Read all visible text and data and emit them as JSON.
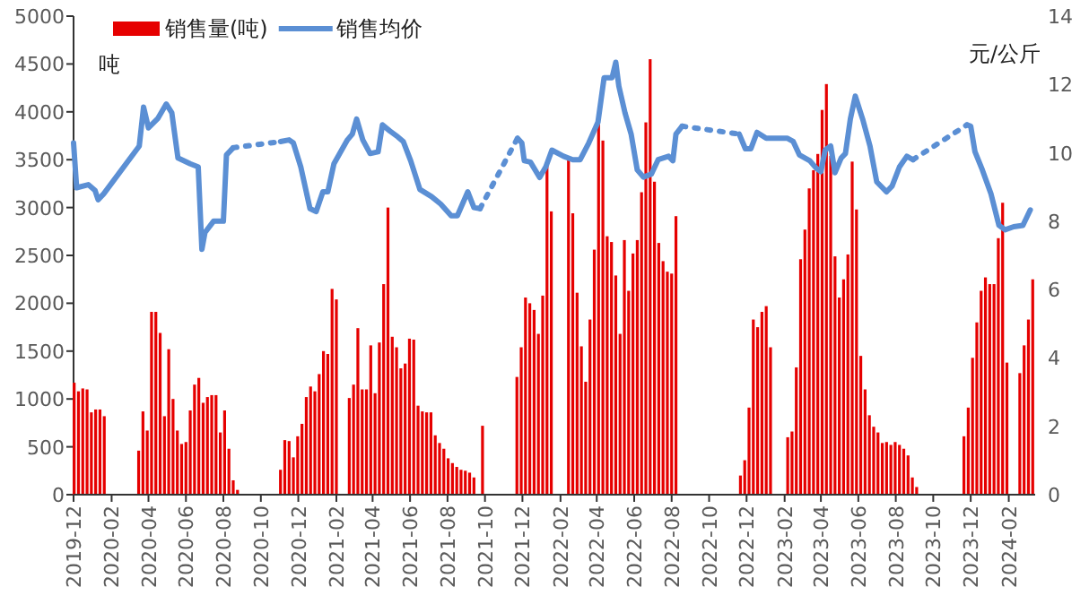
{
  "chart_data": {
    "type": "bar",
    "ylabel": "吨",
    "y2label": "元/公斤",
    "legend": "top left",
    "xlim": [
      "2019-12-01",
      "2024-03-15"
    ],
    "ylim": [
      0,
      5000
    ],
    "yticks": [
      0,
      500,
      1000,
      1500,
      2000,
      2500,
      3000,
      3500,
      4000,
      4500,
      5000
    ],
    "y2lim": [
      0,
      14
    ],
    "y2ticks": [
      0,
      2,
      4,
      6,
      8,
      10,
      12,
      14
    ],
    "xticks": [
      {
        "value": "2019-12",
        "label": "2019-12"
      },
      {
        "value": "2020-02",
        "label": "2020-02"
      },
      {
        "value": "2020-04",
        "label": "2020-04"
      },
      {
        "value": "2020-06",
        "label": "2020-06"
      },
      {
        "value": "2020-08",
        "label": "2020-08"
      },
      {
        "value": "2020-10",
        "label": "2020-10"
      },
      {
        "value": "2020-12",
        "label": "2020-12"
      },
      {
        "value": "2021-02",
        "label": "2021-02"
      },
      {
        "value": "2021-04",
        "label": "2021-04"
      },
      {
        "value": "2021-06",
        "label": "2021-06"
      },
      {
        "value": "2021-08",
        "label": "2021-08"
      },
      {
        "value": "2021-10",
        "label": "2021-10"
      },
      {
        "value": "2021-12",
        "label": "2021-12"
      },
      {
        "value": "2022-02",
        "label": "2022-02"
      },
      {
        "value": "2022-04",
        "label": "2022-04"
      },
      {
        "value": "2022-06",
        "label": "2022-06"
      },
      {
        "value": "2022-08",
        "label": "2022-08"
      },
      {
        "value": "2022-10",
        "label": "2022-10"
      },
      {
        "value": "2022-12",
        "label": "2022-12"
      },
      {
        "value": "2023-02",
        "label": "2023-02"
      },
      {
        "value": "2023-04",
        "label": "2023-04"
      },
      {
        "value": "2023-06",
        "label": "2023-06"
      },
      {
        "value": "2023-08",
        "label": "2023-08"
      },
      {
        "value": "2023-10",
        "label": "2023-10"
      },
      {
        "value": "2023-12",
        "label": "2023-12"
      },
      {
        "value": "2024-02",
        "label": "2024-02"
      }
    ],
    "series": [
      {
        "name": "销售量(吨)",
        "color": "#e60000",
        "x": [
          "2019-12-02",
          "2019-12-09",
          "2019-12-16",
          "2019-12-23",
          "2019-12-30",
          "2020-01-06",
          "2020-01-13",
          "2020-01-20",
          "2020-03-16",
          "2020-03-23",
          "2020-03-30",
          "2020-04-06",
          "2020-04-13",
          "2020-04-20",
          "2020-04-27",
          "2020-05-04",
          "2020-05-11",
          "2020-05-18",
          "2020-05-25",
          "2020-06-01",
          "2020-06-08",
          "2020-06-15",
          "2020-06-22",
          "2020-06-29",
          "2020-07-06",
          "2020-07-13",
          "2020-07-20",
          "2020-07-27",
          "2020-08-03",
          "2020-08-10",
          "2020-08-17",
          "2020-08-24",
          "2020-08-31",
          "2020-11-02",
          "2020-11-09",
          "2020-11-16",
          "2020-11-23",
          "2020-11-30",
          "2020-12-07",
          "2020-12-14",
          "2020-12-21",
          "2020-12-28",
          "2021-01-04",
          "2021-01-11",
          "2021-01-18",
          "2021-01-25",
          "2021-02-01",
          "2021-02-22",
          "2021-03-01",
          "2021-03-08",
          "2021-03-15",
          "2021-03-22",
          "2021-03-29",
          "2021-04-05",
          "2021-04-12",
          "2021-04-19",
          "2021-04-26",
          "2021-05-03",
          "2021-05-10",
          "2021-05-17",
          "2021-05-24",
          "2021-05-31",
          "2021-06-07",
          "2021-06-14",
          "2021-06-21",
          "2021-06-28",
          "2021-07-05",
          "2021-07-12",
          "2021-07-19",
          "2021-07-26",
          "2021-08-02",
          "2021-08-09",
          "2021-08-16",
          "2021-08-23",
          "2021-08-30",
          "2021-09-06",
          "2021-09-13",
          "2021-09-27",
          "2021-11-22",
          "2021-11-29",
          "2021-12-06",
          "2021-12-13",
          "2021-12-20",
          "2021-12-27",
          "2022-01-03",
          "2022-01-10",
          "2022-01-17",
          "2022-02-14",
          "2022-02-21",
          "2022-02-28",
          "2022-03-07",
          "2022-03-14",
          "2022-03-21",
          "2022-03-28",
          "2022-04-04",
          "2022-04-11",
          "2022-04-18",
          "2022-04-25",
          "2022-05-02",
          "2022-05-09",
          "2022-05-16",
          "2022-05-23",
          "2022-05-30",
          "2022-06-06",
          "2022-06-13",
          "2022-06-20",
          "2022-06-27",
          "2022-07-04",
          "2022-07-11",
          "2022-07-18",
          "2022-07-25",
          "2022-08-01",
          "2022-08-08",
          "2022-11-21",
          "2022-11-28",
          "2022-12-05",
          "2022-12-12",
          "2022-12-19",
          "2022-12-26",
          "2023-01-02",
          "2023-01-09",
          "2023-02-06",
          "2023-02-13",
          "2023-02-20",
          "2023-02-27",
          "2023-03-06",
          "2023-03-13",
          "2023-03-20",
          "2023-03-27",
          "2023-04-03",
          "2023-04-10",
          "2023-04-17",
          "2023-04-24",
          "2023-05-01",
          "2023-05-08",
          "2023-05-15",
          "2023-05-22",
          "2023-05-29",
          "2023-06-05",
          "2023-06-12",
          "2023-06-19",
          "2023-06-26",
          "2023-07-03",
          "2023-07-10",
          "2023-07-17",
          "2023-07-24",
          "2023-07-31",
          "2023-08-07",
          "2023-08-14",
          "2023-08-21",
          "2023-08-28",
          "2023-09-04",
          "2023-11-20",
          "2023-11-27",
          "2023-12-04",
          "2023-12-11",
          "2023-12-18",
          "2023-12-25",
          "2024-01-01",
          "2024-01-08",
          "2024-01-15",
          "2024-01-22",
          "2024-01-29",
          "2024-02-19",
          "2024-02-26",
          "2024-03-04",
          "2024-03-11"
        ],
        "values": [
          1170,
          1080,
          1110,
          1100,
          860,
          890,
          890,
          820,
          460,
          870,
          670,
          1910,
          1910,
          1690,
          820,
          1520,
          1000,
          670,
          530,
          550,
          880,
          1150,
          1220,
          960,
          1020,
          1040,
          1040,
          650,
          880,
          480,
          150,
          50,
          null,
          260,
          570,
          560,
          390,
          610,
          740,
          1020,
          1130,
          1080,
          1260,
          1500,
          1470,
          2150,
          2040,
          1010,
          1150,
          1740,
          1100,
          1100,
          1560,
          1060,
          1590,
          2200,
          3000,
          1650,
          1540,
          1320,
          1370,
          1630,
          1620,
          930,
          870,
          860,
          860,
          620,
          540,
          480,
          380,
          330,
          290,
          260,
          250,
          230,
          180,
          720,
          1230,
          1540,
          2060,
          2000,
          1930,
          1680,
          2080,
          3450,
          2960,
          3520,
          2940,
          2110,
          1550,
          1180,
          1830,
          2560,
          3890,
          3700,
          2700,
          2640,
          2290,
          1680,
          2660,
          2130,
          2520,
          2660,
          3160,
          3890,
          4550,
          3270,
          2630,
          2440,
          2330,
          2310,
          2910,
          200,
          360,
          910,
          1830,
          1750,
          1910,
          1970,
          1540,
          600,
          660,
          1330,
          2460,
          2770,
          3200,
          3390,
          3560,
          4020,
          4290,
          3540,
          2490,
          2060,
          2250,
          2510,
          3480,
          2980,
          1450,
          1100,
          830,
          710,
          650,
          540,
          550,
          520,
          550,
          520,
          480,
          410,
          180,
          80,
          610,
          910,
          1430,
          1800,
          2130,
          2270,
          2200,
          2200,
          2680,
          3050,
          1380,
          1270,
          1560,
          1830,
          2250
        ]
      },
      {
        "name": "销售均价",
        "type": "line",
        "axis": "y2",
        "color": "#5b8fd4",
        "line_style": "solid",
        "x": [
          "2019-12-01",
          "2019-12-06",
          "2019-12-25",
          "2020-01-05",
          "2020-01-10",
          "2020-01-19",
          "2020-03-17",
          "2020-03-24",
          "2020-04-01",
          "2020-04-16",
          "2020-04-30",
          "2020-05-09",
          "2020-05-19",
          "2020-06-08",
          "2020-06-21",
          "2020-06-27",
          "2020-07-02",
          "2020-07-16",
          "2020-08-01",
          "2020-08-06",
          "2020-08-17",
          "2020-10-01",
          "2020-11-02",
          "2020-11-16",
          "2020-11-23",
          "2020-12-05",
          "2020-12-20",
          "2020-12-30",
          "2021-01-10",
          "2021-01-18",
          "2021-01-28",
          "2021-02-19",
          "2021-02-27",
          "2021-03-06",
          "2021-03-16",
          "2021-03-28",
          "2021-04-10",
          "2021-04-17",
          "2021-04-29",
          "2021-05-12",
          "2021-05-21",
          "2021-06-02",
          "2021-06-17",
          "2021-07-06",
          "2021-07-21",
          "2021-08-07",
          "2021-08-17",
          "2021-09-03",
          "2021-09-13",
          "2021-09-23",
          "2021-10-20",
          "2021-11-23",
          "2021-11-30",
          "2021-12-04",
          "2021-12-14",
          "2021-12-29",
          "2022-01-08",
          "2022-01-18",
          "2022-02-06",
          "2022-02-21",
          "2022-03-05",
          "2022-03-19",
          "2022-04-03",
          "2022-04-13",
          "2022-04-26",
          "2022-05-02",
          "2022-05-07",
          "2022-05-17",
          "2022-05-27",
          "2022-06-06",
          "2022-06-16",
          "2022-06-29",
          "2022-07-10",
          "2022-07-27",
          "2022-08-03",
          "2022-08-08",
          "2022-08-18",
          "2022-10-01",
          "2022-11-19",
          "2022-11-29",
          "2022-12-08",
          "2022-12-18",
          "2023-01-02",
          "2023-01-16",
          "2023-02-05",
          "2023-02-15",
          "2023-02-25",
          "2023-03-14",
          "2023-03-24",
          "2023-04-01",
          "2023-04-08",
          "2023-04-17",
          "2023-04-24",
          "2023-05-04",
          "2023-05-11",
          "2023-05-19",
          "2023-05-27",
          "2023-06-08",
          "2023-06-20",
          "2023-07-01",
          "2023-07-17",
          "2023-07-26",
          "2023-08-07",
          "2023-08-19",
          "2023-08-29",
          "2023-10-15",
          "2023-11-25",
          "2023-12-01",
          "2023-12-08",
          "2023-12-20",
          "2024-01-03",
          "2024-01-16",
          "2024-01-26",
          "2024-02-09",
          "2024-02-24",
          "2024-03-07"
        ],
        "values": [
          10.29,
          8.98,
          9.07,
          8.9,
          8.63,
          8.8,
          10.2,
          11.34,
          10.73,
          11.0,
          11.43,
          11.17,
          9.85,
          9.68,
          9.59,
          7.18,
          7.67,
          8.0,
          8.0,
          9.94,
          10.15,
          null,
          10.33,
          10.38,
          10.29,
          9.59,
          8.37,
          8.28,
          8.86,
          8.86,
          9.68,
          10.38,
          10.55,
          10.99,
          10.38,
          9.98,
          10.03,
          10.82,
          10.64,
          10.47,
          10.33,
          9.77,
          8.93,
          8.72,
          8.5,
          8.16,
          8.16,
          8.86,
          8.4,
          8.37,
          null,
          10.43,
          10.29,
          9.77,
          9.73,
          9.28,
          9.59,
          10.08,
          9.9,
          9.8,
          9.8,
          10.29,
          10.9,
          12.2,
          12.2,
          12.65,
          11.95,
          11.17,
          10.55,
          9.5,
          9.29,
          9.38,
          9.8,
          9.9,
          9.77,
          10.55,
          10.78,
          null,
          10.55,
          10.12,
          10.12,
          10.6,
          10.43,
          10.43,
          10.43,
          10.33,
          9.94,
          9.77,
          9.56,
          9.45,
          10.08,
          10.2,
          9.42,
          9.85,
          9.98,
          10.99,
          11.66,
          10.99,
          10.2,
          9.15,
          8.86,
          9.03,
          9.59,
          9.9,
          9.8,
          null,
          10.82,
          10.78,
          10.03,
          9.5,
          8.8,
          7.88,
          7.75,
          7.84,
          7.88,
          8.33
        ]
      }
    ]
  }
}
